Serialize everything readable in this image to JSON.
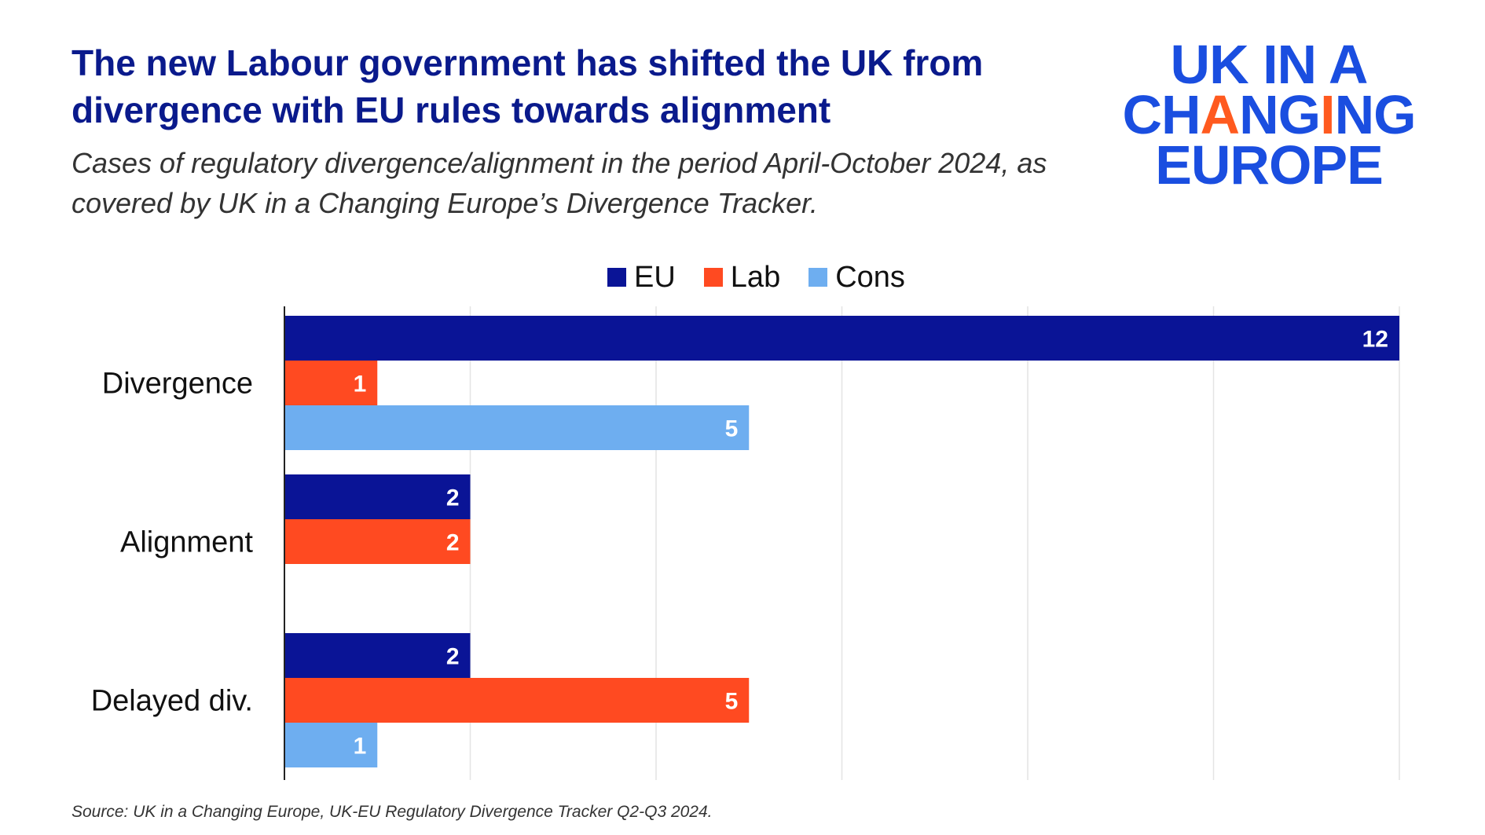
{
  "header": {
    "title": "The new Labour government has shifted the UK from divergence with EU rules towards alignment",
    "subtitle": "Cases of regulatory divergence/alignment in the period April-October 2024, as covered by UK in a Changing Europe’s Divergence Tracker."
  },
  "logo": {
    "line1": "UK IN A",
    "line2_pre": "CH",
    "line2_a": "A",
    "line2_mid": "NG",
    "line2_i": "I",
    "line2_post": "NG",
    "line3": "EUROPE",
    "color": "#1a4ee0",
    "accent_color": "#ff5a1f"
  },
  "chart_data": {
    "type": "bar",
    "orientation": "horizontal",
    "categories": [
      "Divergence",
      "Alignment",
      "Delayed div."
    ],
    "series": [
      {
        "name": "EU",
        "color": "#0a1496",
        "values": [
          12,
          2,
          2
        ]
      },
      {
        "name": "Lab",
        "color": "#ff4a21",
        "values": [
          1,
          2,
          5
        ]
      },
      {
        "name": "Cons",
        "color": "#6eaef0",
        "values": [
          5,
          0,
          1
        ]
      }
    ],
    "xlim": [
      0,
      12
    ],
    "grid": true,
    "legend": "top-center",
    "data_labels": true
  },
  "footer": {
    "source": "Source: UK in a Changing Europe, UK-EU Regulatory Divergence Tracker Q2-Q3 2024."
  }
}
